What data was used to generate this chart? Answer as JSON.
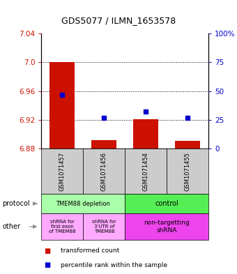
{
  "title": "GDS5077 / ILMN_1653578",
  "samples": [
    "GSM1071457",
    "GSM1071456",
    "GSM1071454",
    "GSM1071455"
  ],
  "transformed_counts": [
    7.0,
    6.892,
    6.921,
    6.891
  ],
  "percentile_ranks": [
    47,
    27,
    32,
    27
  ],
  "bar_bottom": 6.88,
  "ylim": [
    6.88,
    7.04
  ],
  "yticks_left": [
    6.88,
    6.92,
    6.96,
    7.0,
    7.04
  ],
  "yticks_right": [
    0,
    25,
    50,
    75,
    100
  ],
  "yticks_right_labels": [
    "0",
    "25",
    "50",
    "75",
    "100%"
  ],
  "dotted_lines": [
    7.0,
    6.96,
    6.92
  ],
  "bar_color": "#cc1100",
  "dot_color": "#0000cc",
  "protocol_colors": [
    "#aaffaa",
    "#55ee55"
  ],
  "other_colors_left": "#ffaaff",
  "other_colors_right": "#ee44ee",
  "protocol_labels": [
    "TMEM88 depletion",
    "control"
  ],
  "other_labels": [
    "shRNA for\nfirst exon\nof TMEM88",
    "shRNA for\n3'UTR of\nTMEM88",
    "non-targetting\nshRNA"
  ],
  "legend_red": "transformed count",
  "legend_blue": "percentile rank within the sample"
}
